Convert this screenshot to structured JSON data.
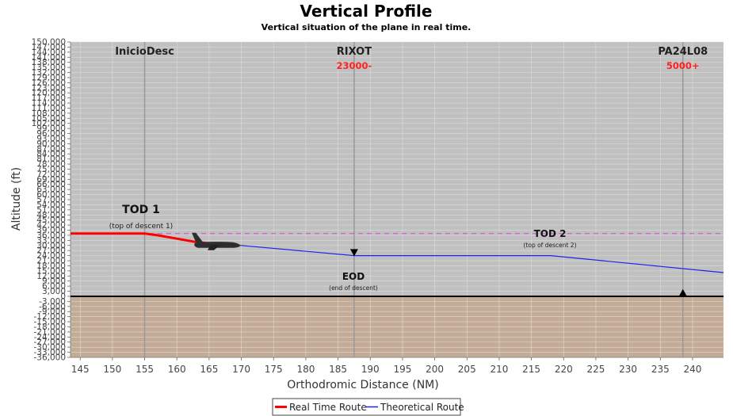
{
  "chart_data": {
    "type": "line",
    "title": "Vertical Profile",
    "subtitle": "Vertical situation of the plane in real time.",
    "xlabel": "Orthodromic Distance (NM)",
    "ylabel": "Altitude (ft)",
    "xlim": [
      143.5,
      244.8
    ],
    "ylim": [
      -36000,
      150000
    ],
    "x_ticks": [
      145,
      150,
      155,
      160,
      165,
      170,
      175,
      180,
      185,
      190,
      195,
      200,
      205,
      210,
      215,
      220,
      225,
      230,
      235,
      240
    ],
    "y_ticks": [
      "150,000",
      "147,000",
      "144,000",
      "141,000",
      "138,000",
      "135,000",
      "132,000",
      "129,000",
      "126,000",
      "123,000",
      "120,000",
      "117,000",
      "114,000",
      "111,000",
      "108,000",
      "105,000",
      "102,000",
      "99,000",
      "96,000",
      "93,000",
      "90,000",
      "87,000",
      "84,000",
      "81,000",
      "78,000",
      "75,000",
      "72,000",
      "69,000",
      "66,000",
      "63,000",
      "60,000",
      "57,000",
      "54,000",
      "51,000",
      "48,000",
      "45,000",
      "42,000",
      "39,000",
      "36,000",
      "33,000",
      "30,000",
      "27,000",
      "24,000",
      "21,000",
      "18,000",
      "15,000",
      "12,000",
      "9,000",
      "6,000",
      "3,000",
      "0",
      "-3,000",
      "-6,000",
      "-9,000",
      "-12,000",
      "-15,000",
      "-18,000",
      "-21,000",
      "-24,000",
      "-27,000",
      "-30,000",
      "-33,000",
      "-36,000"
    ],
    "grid": true,
    "legend_position": "bottom-center",
    "series": [
      {
        "name": "Real Time Route",
        "color": "#ff0000",
        "x": [
          143.5,
          155,
          157,
          160,
          163,
          164.5
        ],
        "y": [
          37000,
          37000,
          36000,
          34000,
          32000,
          31500
        ]
      },
      {
        "name": "Theoretical Route",
        "color": "#2222ee",
        "x": [
          164.5,
          170,
          187.5,
          218,
          244.8
        ],
        "y": [
          31500,
          30000,
          24000,
          24000,
          14000
        ]
      }
    ],
    "ground_level": 0,
    "cruise_level": 37000,
    "waypoints": [
      {
        "name": "InicioDesc",
        "x": 155,
        "altitude_label": ""
      },
      {
        "name": "RIXOT",
        "x": 187.5,
        "altitude_label": "23000-"
      },
      {
        "name": "PA24L08",
        "x": 238.5,
        "altitude_label": "5000+"
      }
    ],
    "annotations": {
      "tod1_title": "TOD 1",
      "tod1_desc": "(top of descent 1)",
      "tod2_title": "TOD 2",
      "tod2_desc": "(top of descent 2)",
      "eod_title": "EOD",
      "eod_desc": "(end of descent)"
    },
    "markers": [
      {
        "shape": "triangle-down",
        "x": 187.5,
        "y": 26000
      },
      {
        "shape": "triangle-up",
        "x": 238.5,
        "y": 2000
      }
    ],
    "aircraft": {
      "x": 166,
      "y": 30000
    },
    "colors": {
      "sky": "#c0c0c0",
      "ground": "#c4ab95",
      "grid": "#dcdcdc",
      "cruise_dash": "#e040e0"
    }
  }
}
